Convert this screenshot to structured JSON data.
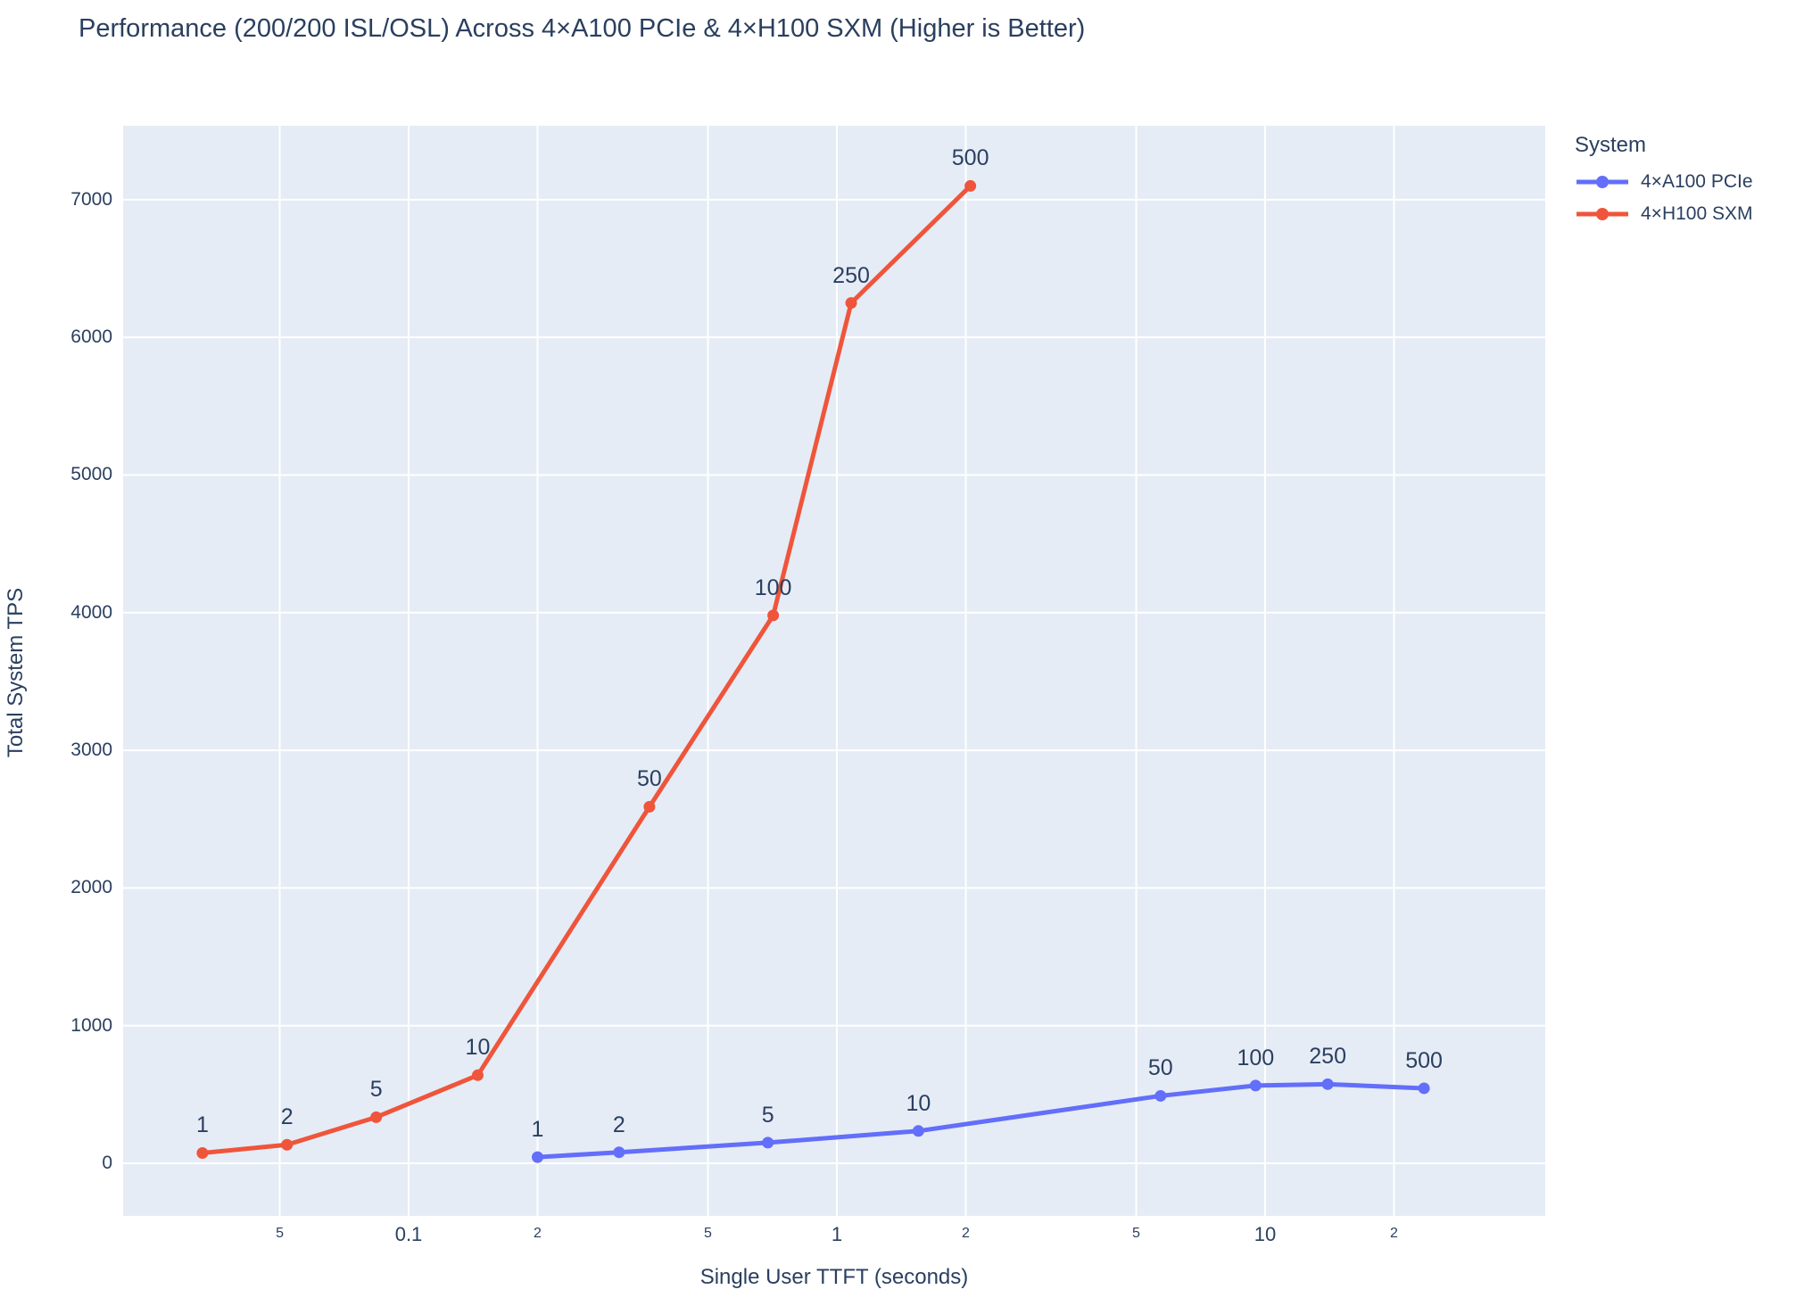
{
  "colors": {
    "background": "#ffffff",
    "plot_background": "#E5ECF6",
    "gridline": "#ffffff",
    "text": "#2a3f5f",
    "series_a100": "#636EFA",
    "series_h100": "#EF553B"
  },
  "legend": {
    "title": "System",
    "items": [
      {
        "label": "4×A100 PCIe",
        "color": "#636EFA"
      },
      {
        "label": "4×H100 SXM",
        "color": "#EF553B"
      }
    ]
  },
  "chart_data": {
    "type": "line",
    "title": "Performance (200/200 ISL/OSL) Across 4×A100 PCIe & 4×H100 SXM (Higher is Better)",
    "xlabel": "Single User TTFT (seconds)",
    "ylabel": "Total System TPS",
    "x_scale": "log",
    "x_range_log10": [
      -1.6667,
      1.6542
    ],
    "y_range": [
      -382,
      7537
    ],
    "grid": true,
    "legend_position": "top-right-outside",
    "x_ticks": [
      {
        "value": 0.05,
        "label": "5",
        "major": false
      },
      {
        "value": 0.1,
        "label": "0.1",
        "major": true
      },
      {
        "value": 0.2,
        "label": "2",
        "major": false
      },
      {
        "value": 0.5,
        "label": "5",
        "major": false
      },
      {
        "value": 1,
        "label": "1",
        "major": true
      },
      {
        "value": 2,
        "label": "2",
        "major": false
      },
      {
        "value": 5,
        "label": "5",
        "major": false
      },
      {
        "value": 10,
        "label": "10",
        "major": true
      },
      {
        "value": 20,
        "label": "2",
        "major": false
      }
    ],
    "y_ticks": [
      {
        "value": 0,
        "label": "0"
      },
      {
        "value": 1000,
        "label": "1000"
      },
      {
        "value": 2000,
        "label": "2000"
      },
      {
        "value": 3000,
        "label": "3000"
      },
      {
        "value": 4000,
        "label": "4000"
      },
      {
        "value": 5000,
        "label": "5000"
      },
      {
        "value": 6000,
        "label": "6000"
      },
      {
        "value": 7000,
        "label": "7000"
      }
    ],
    "series": [
      {
        "name": "4×A100 PCIe",
        "color": "#636EFA",
        "points": [
          {
            "label": "1",
            "ttft_s": 0.2,
            "tps": 45
          },
          {
            "label": "2",
            "ttft_s": 0.31,
            "tps": 80
          },
          {
            "label": "5",
            "ttft_s": 0.69,
            "tps": 150
          },
          {
            "label": "10",
            "ttft_s": 1.55,
            "tps": 235
          },
          {
            "label": "50",
            "ttft_s": 5.7,
            "tps": 490
          },
          {
            "label": "100",
            "ttft_s": 9.5,
            "tps": 565
          },
          {
            "label": "250",
            "ttft_s": 14.0,
            "tps": 575
          },
          {
            "label": "500",
            "ttft_s": 23.5,
            "tps": 545
          }
        ]
      },
      {
        "name": "4×H100 SXM",
        "color": "#EF553B",
        "points": [
          {
            "label": "1",
            "ttft_s": 0.033,
            "tps": 75
          },
          {
            "label": "2",
            "ttft_s": 0.052,
            "tps": 135
          },
          {
            "label": "5",
            "ttft_s": 0.084,
            "tps": 335
          },
          {
            "label": "10",
            "ttft_s": 0.145,
            "tps": 640
          },
          {
            "label": "50",
            "ttft_s": 0.365,
            "tps": 2590
          },
          {
            "label": "100",
            "ttft_s": 0.71,
            "tps": 3980
          },
          {
            "label": "250",
            "ttft_s": 1.08,
            "tps": 6250
          },
          {
            "label": "500",
            "ttft_s": 2.05,
            "tps": 7100
          }
        ]
      }
    ]
  }
}
